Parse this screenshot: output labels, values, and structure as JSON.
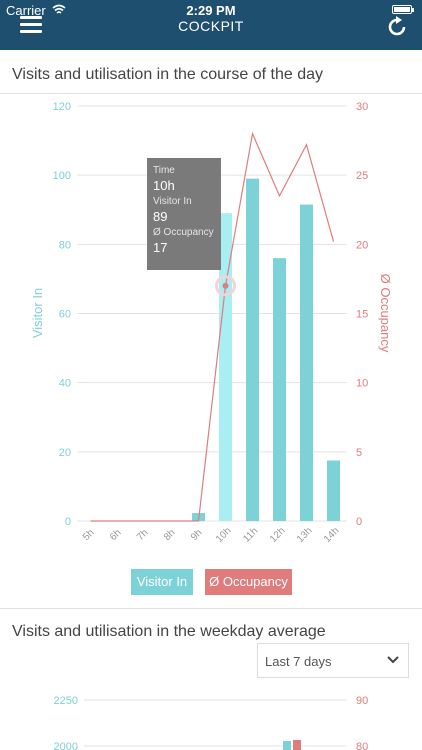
{
  "status_bar": {
    "carrier": "Carrier",
    "time": "2:29 PM"
  },
  "header": {
    "title": "COCKPIT",
    "menu_icon": "hamburger-menu-icon",
    "refresh_icon": "refresh-icon"
  },
  "chart_daily": {
    "section_title": "Visits and utilisation in the course of the day",
    "tooltip": {
      "time_label": "Time",
      "time_value": "10h",
      "visitor_label": "Visitor In",
      "visitor_value": "89",
      "occupancy_label": "Ø Occupancy",
      "occupancy_value": "17"
    },
    "legend": [
      {
        "label": "Visitor In",
        "color": "#7dd2d8"
      },
      {
        "label": "Ø Occupancy",
        "color": "#e07c7c"
      }
    ]
  },
  "chart_weekday": {
    "section_title": "Visits and utilisation in the weekday average",
    "range_select": {
      "selected": "Last 7 days"
    }
  },
  "chart_data": [
    {
      "type": "bar",
      "categories": [
        "5h",
        "6h",
        "7h",
        "8h",
        "9h",
        "10h",
        "11h",
        "12h",
        "13h",
        "14h"
      ],
      "series": [
        {
          "name": "Visitor In",
          "type": "bar",
          "axis": "left",
          "values": [
            0,
            0,
            0,
            0,
            2.3,
            89,
            99,
            76,
            91.5,
            17.5
          ],
          "color": "#7dd2d8"
        },
        {
          "name": "Ø Occupancy",
          "type": "line",
          "axis": "right",
          "values": [
            0,
            0,
            0,
            0,
            0,
            17,
            28,
            23.5,
            27.2,
            20.2
          ],
          "color": "#e07c7c"
        }
      ],
      "ylabel": "Visitor In",
      "y2label": "Ø Occupancy",
      "ylim": [
        0,
        120
      ],
      "y2lim": [
        0,
        30
      ],
      "yticks": [
        "0",
        "20",
        "40",
        "60",
        "80",
        "100",
        "120"
      ],
      "y2ticks": [
        "0",
        "5",
        "10",
        "15",
        "20",
        "25",
        "30"
      ],
      "highlight_category": "10h",
      "grid": true
    },
    {
      "type": "bar",
      "ytick_labels_visible": [
        "2250",
        "2000"
      ],
      "y2tick_labels_visible": [
        "90",
        "80"
      ],
      "colors": [
        "#7dd2d8",
        "#e07c7c"
      ]
    }
  ]
}
